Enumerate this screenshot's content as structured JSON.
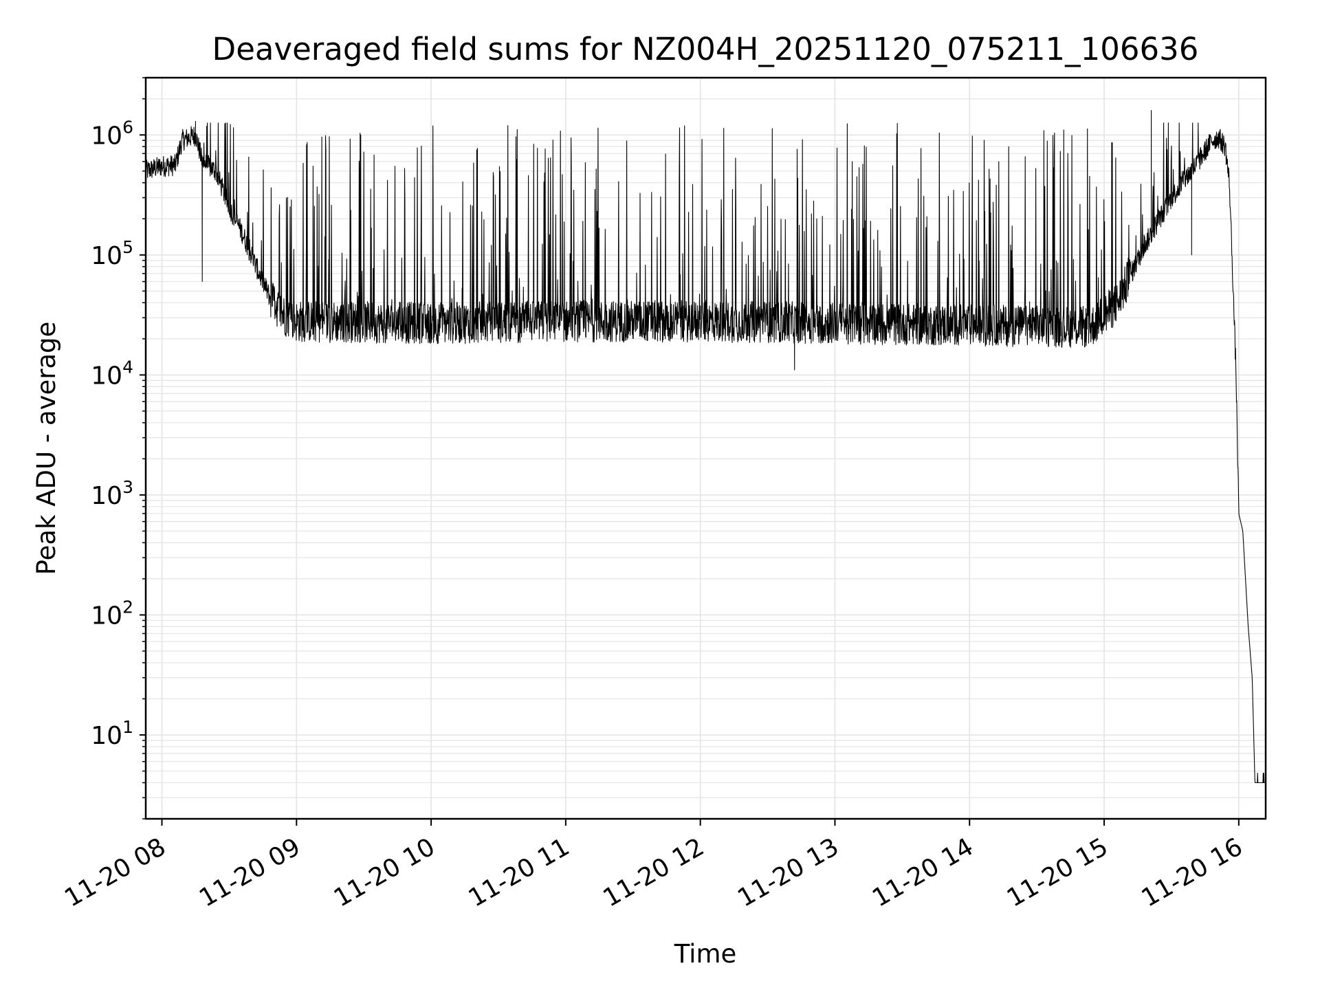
{
  "chart_data": {
    "type": "line",
    "title": "Deaveraged field sums for NZ004H_20251120_075211_106636",
    "xlabel": "Time",
    "ylabel": "Peak ADU - average",
    "yscale": "log",
    "ylim": [
      2,
      3000000
    ],
    "xlim_hours": [
      7.88,
      16.2
    ],
    "grid": true,
    "line_color": "#000000",
    "grid_color": "#e4e4e4",
    "x_ticks": [
      {
        "hour": 8,
        "label": "11-20 08"
      },
      {
        "hour": 9,
        "label": "11-20 09"
      },
      {
        "hour": 10,
        "label": "11-20 10"
      },
      {
        "hour": 11,
        "label": "11-20 11"
      },
      {
        "hour": 12,
        "label": "11-20 12"
      },
      {
        "hour": 13,
        "label": "11-20 13"
      },
      {
        "hour": 14,
        "label": "11-20 14"
      },
      {
        "hour": 15,
        "label": "11-20 15"
      },
      {
        "hour": 16,
        "label": "11-20 16"
      }
    ],
    "y_ticks": [
      {
        "value": 10,
        "base": "10",
        "exp": "1"
      },
      {
        "value": 100,
        "base": "10",
        "exp": "2"
      },
      {
        "value": 1000,
        "base": "10",
        "exp": "3"
      },
      {
        "value": 10000,
        "base": "10",
        "exp": "4"
      },
      {
        "value": 100000,
        "base": "10",
        "exp": "5"
      },
      {
        "value": 1000000,
        "base": "10",
        "exp": "6"
      }
    ],
    "series": [
      {
        "name": "Peak ADU - average",
        "envelope_points": [
          [
            7.88,
            500000
          ],
          [
            8.0,
            550000
          ],
          [
            8.1,
            560000
          ],
          [
            8.15,
            900000
          ],
          [
            8.25,
            1000000
          ],
          [
            8.3,
            600000
          ],
          [
            8.4,
            500000
          ],
          [
            8.5,
            250000
          ],
          [
            8.6,
            150000
          ],
          [
            8.7,
            80000
          ],
          [
            8.8,
            45000
          ],
          [
            8.9,
            32000
          ],
          [
            9.0,
            28000
          ],
          [
            10.0,
            27000
          ],
          [
            11.0,
            28000
          ],
          [
            12.0,
            28000
          ],
          [
            13.0,
            27000
          ],
          [
            14.0,
            26000
          ],
          [
            14.9,
            25000
          ],
          [
            15.1,
            40000
          ],
          [
            15.3,
            120000
          ],
          [
            15.5,
            300000
          ],
          [
            15.7,
            600000
          ],
          [
            15.8,
            900000
          ],
          [
            15.85,
            950000
          ],
          [
            15.9,
            800000
          ],
          [
            15.93,
            400000
          ],
          [
            15.95,
            100000
          ],
          [
            15.98,
            10000
          ],
          [
            16.0,
            700
          ],
          [
            16.03,
            500
          ],
          [
            16.05,
            200
          ],
          [
            16.07,
            80
          ],
          [
            16.1,
            30
          ],
          [
            16.12,
            4
          ],
          [
            16.2,
            4
          ]
        ],
        "notable_spikes": [
          {
            "hour": 8.25,
            "value": 1300000
          },
          {
            "hour": 8.3,
            "value": 60000
          },
          {
            "hour": 12.7,
            "value": 11000
          },
          {
            "hour": 15.35,
            "value": 1600000
          },
          {
            "hour": 15.65,
            "value": 100000
          }
        ]
      }
    ]
  }
}
